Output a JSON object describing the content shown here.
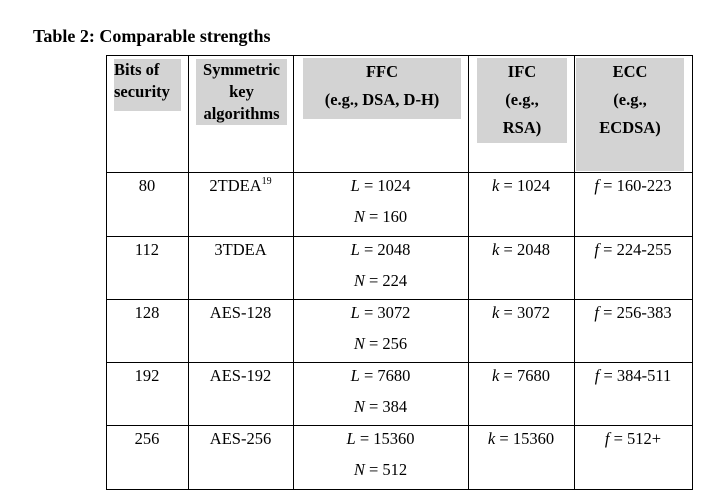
{
  "caption": "Table 2: Comparable strengths",
  "headers": {
    "bits": [
      "Bits of",
      "security"
    ],
    "sym": [
      "Symmetric",
      "key",
      "algorithms"
    ],
    "ffc": [
      "FFC",
      "(e.g., DSA, D-H)"
    ],
    "ifc": [
      "IFC",
      "(e.g.,",
      "RSA)"
    ],
    "ecc": [
      "ECC",
      "(e.g.,",
      "ECDSA)"
    ]
  },
  "rows": [
    {
      "bits": "80",
      "sym": "2TDEA",
      "sym_sup": "19",
      "L": "1024",
      "N": "160",
      "k": "1024",
      "f": "160-223"
    },
    {
      "bits": "112",
      "sym": "3TDEA",
      "sym_sup": "",
      "L": "2048",
      "N": "224",
      "k": "2048",
      "f": "224-255"
    },
    {
      "bits": "128",
      "sym": "AES-128",
      "sym_sup": "",
      "L": "3072",
      "N": "256",
      "k": "3072",
      "f": "256-383"
    },
    {
      "bits": "192",
      "sym": "AES-192",
      "sym_sup": "",
      "L": "7680",
      "N": "384",
      "k": "7680",
      "f": "384-511"
    },
    {
      "bits": "256",
      "sym": "AES-256",
      "sym_sup": "",
      "L": "15360",
      "N": "512",
      "k": "15360",
      "f": "512+"
    }
  ],
  "var_labels": {
    "L": "L",
    "N": "N",
    "k": "k",
    "f": "f",
    "eq": " = "
  }
}
